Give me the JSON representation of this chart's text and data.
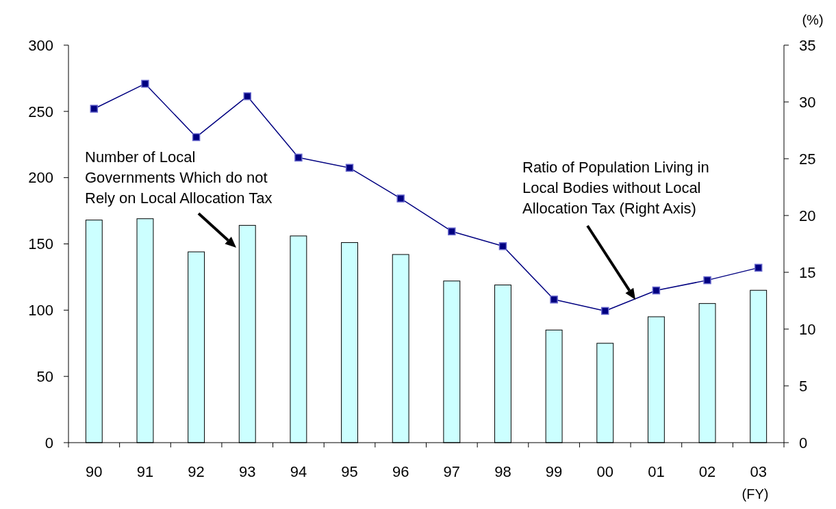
{
  "chart_data": {
    "type": "bar",
    "categories": [
      "90",
      "91",
      "92",
      "93",
      "94",
      "95",
      "96",
      "97",
      "98",
      "99",
      "00",
      "01",
      "02",
      "03"
    ],
    "series": [
      {
        "color": "#ccffff",
        "values": [
          168,
          169,
          144,
          164,
          156,
          151,
          142,
          122,
          119,
          85,
          75,
          95,
          105,
          115
        ]
      },
      {
        "type": "line",
        "axis": "y2",
        "color": "#000080",
        "marker": "square",
        "values": [
          29.4,
          31.6,
          26.9,
          30.5,
          25.1,
          24.2,
          21.5,
          18.6,
          17.3,
          12.6,
          11.6,
          13.4,
          14.3,
          15.4
        ]
      }
    ],
    "ylim": [
      0,
      300
    ],
    "yticks": [
      0,
      50,
      100,
      150,
      200,
      250,
      300
    ],
    "y2lim": [
      0,
      35
    ],
    "y2ticks": [
      0,
      5,
      10,
      15,
      20,
      25,
      30,
      35
    ],
    "y2label": "(%)",
    "xlabel": "(FY)",
    "grid": false,
    "annotations": [
      "Number of Local\nGovernments Which do not\nRely on Local Allocation Tax",
      "Ratio of Population Living in\nLocal Bodies without Local\nAllocation Tax (Right Axis)"
    ]
  }
}
